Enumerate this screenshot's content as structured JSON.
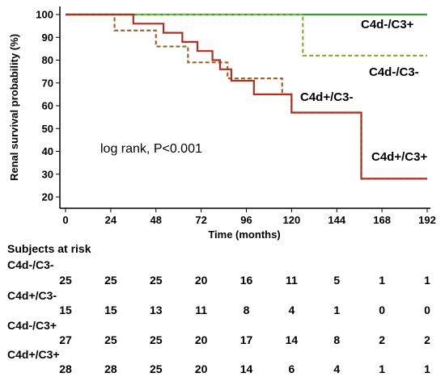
{
  "chart_data": {
    "type": "line",
    "step": true,
    "xlabel": "Time (months)",
    "ylabel": "Renal survival probability (%)",
    "xlim": [
      0,
      192
    ],
    "ylim": [
      20,
      100
    ],
    "xticks": [
      0,
      24,
      48,
      72,
      96,
      120,
      144,
      168,
      192
    ],
    "yticks": [
      20,
      30,
      40,
      50,
      60,
      70,
      80,
      90,
      100
    ],
    "grid": false,
    "annotation": "log rank, P<0.001",
    "series": [
      {
        "name": "C4d-/C3+",
        "color": "#2ca02c",
        "dash": "solid",
        "points": [
          [
            0,
            100
          ],
          [
            192,
            100
          ]
        ]
      },
      {
        "name": "C4d-/C3-",
        "color": "#8db03a",
        "dash": "dashed",
        "points": [
          [
            0,
            100
          ],
          [
            126,
            100
          ],
          [
            126,
            82
          ],
          [
            192,
            82
          ]
        ]
      },
      {
        "name": "C4d+/C3-",
        "color": "#a0652c",
        "dash": "dashed",
        "points": [
          [
            0,
            100
          ],
          [
            26,
            100
          ],
          [
            26,
            93
          ],
          [
            48,
            93
          ],
          [
            48,
            86
          ],
          [
            65,
            86
          ],
          [
            65,
            79
          ],
          [
            86,
            79
          ],
          [
            86,
            72
          ],
          [
            115,
            72
          ],
          [
            115,
            65
          ],
          [
            120,
            65
          ],
          [
            120,
            57
          ],
          [
            157,
            57
          ],
          [
            157,
            28
          ],
          [
            192,
            28
          ]
        ]
      },
      {
        "name": "C4d+/C3+",
        "color": "#b03020",
        "dash": "solid",
        "points": [
          [
            0,
            100
          ],
          [
            36,
            100
          ],
          [
            36,
            96
          ],
          [
            52,
            96
          ],
          [
            52,
            92
          ],
          [
            62,
            92
          ],
          [
            62,
            88
          ],
          [
            70,
            88
          ],
          [
            70,
            84
          ],
          [
            78,
            84
          ],
          [
            78,
            80
          ],
          [
            82,
            80
          ],
          [
            82,
            76
          ],
          [
            88,
            76
          ],
          [
            88,
            71
          ],
          [
            100,
            71
          ],
          [
            100,
            65
          ],
          [
            120,
            65
          ],
          [
            120,
            57
          ],
          [
            157,
            57
          ],
          [
            157,
            28
          ],
          [
            192,
            28
          ]
        ]
      }
    ]
  },
  "risk_table": {
    "title": "Subjects at risk",
    "times": [
      0,
      24,
      48,
      72,
      96,
      120,
      144,
      168,
      192
    ],
    "groups": [
      {
        "name": "C4d-/C3-",
        "counts": [
          "25",
          "25",
          "25",
          "20",
          "16",
          "11",
          "5",
          "1",
          "1"
        ]
      },
      {
        "name": "C4d+/C3-",
        "counts": [
          "15",
          "15",
          "13",
          "11",
          "8",
          "4",
          "1",
          "0",
          "0"
        ]
      },
      {
        "name": "C4d-/C3+",
        "counts": [
          "27",
          "25",
          "25",
          "20",
          "17",
          "14",
          "8",
          "2",
          "2"
        ]
      },
      {
        "name": "C4d+/C3+",
        "counts": [
          "28",
          "28",
          "25",
          "20",
          "14",
          "6",
          "4",
          "1",
          "1"
        ]
      }
    ]
  }
}
